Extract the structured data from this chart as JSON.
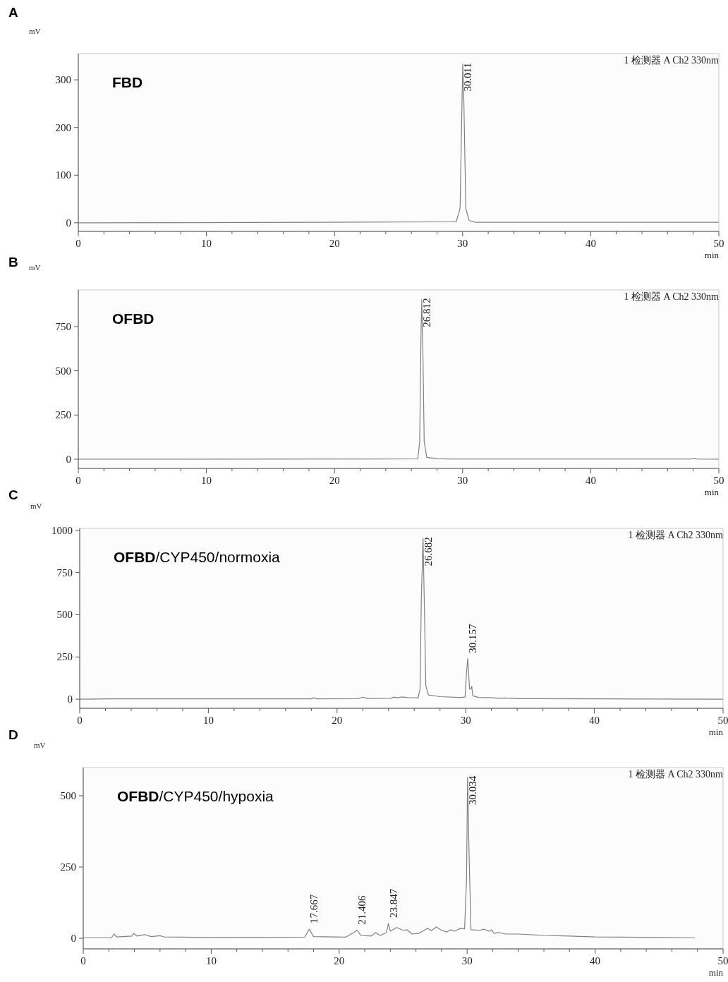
{
  "chart_data": [
    {
      "type": "line",
      "title": "FBD",
      "xlabel": "min",
      "ylabel": "mV",
      "xlim": [
        0,
        50
      ],
      "ylim": [
        -18,
        355
      ],
      "xticks": [
        0,
        {
          "value": 2,
          "label": null
        },
        {
          "value": 4,
          "label": null
        },
        {
          "value": 6,
          "label": null
        },
        {
          "value": 8,
          "label": null
        },
        10,
        {
          "value": 12,
          "label": null
        },
        {
          "value": 14,
          "label": null
        },
        {
          "value": 16,
          "label": null
        },
        {
          "value": 18,
          "label": null
        },
        20,
        {
          "value": 22,
          "label": null
        },
        {
          "value": 24,
          "label": null
        },
        {
          "value": 26,
          "label": null
        },
        {
          "value": 28,
          "label": null
        },
        30,
        {
          "value": 32,
          "label": null
        },
        {
          "value": 34,
          "label": null
        },
        {
          "value": 36,
          "label": null
        },
        {
          "value": 38,
          "label": null
        },
        40,
        {
          "value": 42,
          "label": null
        },
        {
          "value": 44,
          "label": null
        },
        {
          "value": 46,
          "label": null
        },
        {
          "value": 48,
          "label": null
        },
        50
      ],
      "yticks": [
        0,
        100,
        200,
        300
      ],
      "grid": false,
      "series": [
        {
          "color": "#808080",
          "x": [
            0,
            19,
            28,
            29.5,
            29.8,
            29.95,
            30.011,
            30.1,
            30.25,
            30.5,
            31,
            36,
            46,
            50
          ],
          "values": [
            0,
            1,
            2,
            2,
            30,
            250,
            333,
            250,
            30,
            5,
            1,
            1,
            1,
            1
          ]
        }
      ],
      "annotations": [
        "A",
        "1 检测器 A Ch2 330nm",
        {
          "text": "30.011",
          "x": 30.011,
          "y": 333
        }
      ]
    },
    {
      "type": "line",
      "title": "OFBD",
      "xlabel": "min",
      "ylabel": "mV",
      "xlim": [
        0,
        50
      ],
      "ylim": [
        -52,
        957
      ],
      "xticks": [
        0,
        {
          "value": 2,
          "label": null
        },
        {
          "value": 4,
          "label": null
        },
        {
          "value": 6,
          "label": null
        },
        {
          "value": 8,
          "label": null
        },
        10,
        {
          "value": 12,
          "label": null
        },
        {
          "value": 14,
          "label": null
        },
        {
          "value": 16,
          "label": null
        },
        {
          "value": 18,
          "label": null
        },
        20,
        {
          "value": 22,
          "label": null
        },
        {
          "value": 24,
          "label": null
        },
        {
          "value": 26,
          "label": null
        },
        {
          "value": 28,
          "label": null
        },
        30,
        {
          "value": 32,
          "label": null
        },
        {
          "value": 34,
          "label": null
        },
        {
          "value": 36,
          "label": null
        },
        {
          "value": 38,
          "label": null
        },
        40,
        {
          "value": 42,
          "label": null
        },
        {
          "value": 44,
          "label": null
        },
        {
          "value": 46,
          "label": null
        },
        {
          "value": 48,
          "label": null
        },
        50
      ],
      "yticks": [
        0,
        250,
        500,
        750
      ],
      "grid": false,
      "series": [
        {
          "color": "#808080",
          "x": [
            0,
            26.5,
            26.65,
            26.75,
            26.812,
            26.9,
            27.0,
            27.2,
            28,
            29,
            47.8,
            48,
            48.3,
            50
          ],
          "values": [
            0,
            2,
            100,
            700,
            903,
            600,
            100,
            10,
            3,
            1,
            1,
            5,
            1,
            0
          ]
        }
      ],
      "annotations": [
        "B",
        "1 检测器 A Ch2 330nm",
        {
          "text": "26.812",
          "x": 26.812,
          "y": 903
        }
      ]
    },
    {
      "type": "line",
      "title": "OFBD/CYP450/normoxia",
      "xlabel": "min",
      "ylabel": "mV",
      "xlim": [
        0,
        50
      ],
      "ylim": [
        -54,
        1012
      ],
      "xticks": [
        0,
        {
          "value": 2,
          "label": null
        },
        {
          "value": 4,
          "label": null
        },
        {
          "value": 6,
          "label": null
        },
        {
          "value": 8,
          "label": null
        },
        10,
        {
          "value": 12,
          "label": null
        },
        {
          "value": 14,
          "label": null
        },
        {
          "value": 16,
          "label": null
        },
        {
          "value": 18,
          "label": null
        },
        20,
        {
          "value": 22,
          "label": null
        },
        {
          "value": 24,
          "label": null
        },
        {
          "value": 26,
          "label": null
        },
        {
          "value": 28,
          "label": null
        },
        30,
        {
          "value": 32,
          "label": null
        },
        {
          "value": 34,
          "label": null
        },
        {
          "value": 36,
          "label": null
        },
        {
          "value": 38,
          "label": null
        },
        40,
        {
          "value": 42,
          "label": null
        },
        {
          "value": 44,
          "label": null
        },
        {
          "value": 46,
          "label": null
        },
        {
          "value": 48,
          "label": null
        },
        50
      ],
      "yticks": [
        0,
        250,
        500,
        750,
        1000
      ],
      "grid": false,
      "series": [
        {
          "color": "#808080",
          "x": [
            0,
            2.5,
            18,
            18.2,
            18.4,
            21.6,
            22,
            22.4,
            24.2,
            24.4,
            24.7,
            25,
            25.5,
            26.3,
            26.45,
            26.55,
            26.682,
            26.8,
            26.9,
            27.1,
            28,
            29.5,
            29.95,
            30.05,
            30.157,
            30.3,
            30.4,
            30.47,
            30.55,
            31,
            32.2,
            32.5,
            33,
            34,
            40,
            50
          ],
          "values": [
            0,
            2,
            2,
            8,
            2,
            3,
            12,
            4,
            5,
            12,
            8,
            13,
            9,
            8,
            60,
            600,
            952,
            500,
            80,
            25,
            15,
            10,
            12,
            150,
            240,
            60,
            60,
            75,
            20,
            10,
            8,
            5,
            7,
            3,
            2,
            0
          ]
        }
      ],
      "annotations": [
        "C",
        "1 检测器 A Ch2 330nm",
        {
          "text": "26.682",
          "x": 26.682,
          "y": 952
        },
        {
          "text": "30.157",
          "x": 30.157,
          "y": 240
        }
      ]
    },
    {
      "type": "line",
      "title": "OFBD/CYP450/hypoxia",
      "xlabel": "min",
      "ylabel": "mV",
      "xlim": [
        0,
        50
      ],
      "ylim": [
        -37,
        599
      ],
      "xticks": [
        0,
        {
          "value": 2,
          "label": null
        },
        {
          "value": 4,
          "label": null
        },
        {
          "value": 6,
          "label": null
        },
        {
          "value": 8,
          "label": null
        },
        10,
        {
          "value": 12,
          "label": null
        },
        {
          "value": 14,
          "label": null
        },
        {
          "value": 16,
          "label": null
        },
        {
          "value": 18,
          "label": null
        },
        20,
        {
          "value": 22,
          "label": null
        },
        {
          "value": 24,
          "label": null
        },
        {
          "value": 26,
          "label": null
        },
        {
          "value": 28,
          "label": null
        },
        30,
        {
          "value": 32,
          "label": null
        },
        {
          "value": 34,
          "label": null
        },
        {
          "value": 36,
          "label": null
        },
        {
          "value": 38,
          "label": null
        },
        40,
        {
          "value": 42,
          "label": null
        },
        {
          "value": 44,
          "label": null
        },
        {
          "value": 46,
          "label": null
        },
        {
          "value": 48,
          "label": null
        },
        50
      ],
      "yticks": [
        0,
        250,
        500
      ],
      "grid": false,
      "series": [
        {
          "color": "#808080",
          "x": [
            0,
            2.2,
            2.4,
            2.6,
            3.8,
            3.95,
            4.2,
            4.8,
            5.3,
            6,
            6.3,
            10,
            17.3,
            17.667,
            18,
            20.5,
            21,
            21.406,
            21.7,
            22.5,
            22.85,
            23.2,
            23.7,
            23.847,
            24,
            24.5,
            25,
            25.3,
            25.7,
            26.2,
            26.9,
            27.2,
            27.6,
            28,
            28.4,
            28.7,
            29,
            29.5,
            29.8,
            29.95,
            30.034,
            30.15,
            30.3,
            31,
            31.3,
            31.7,
            31.9,
            32.1,
            32.5,
            33,
            34,
            36,
            38,
            40,
            42,
            45,
            47.8
          ],
          "values": [
            2,
            2,
            15,
            5,
            8,
            17,
            8,
            13,
            6,
            9,
            5,
            3,
            4,
            32,
            6,
            4,
            17,
            28,
            10,
            8,
            20,
            10,
            20,
            52,
            25,
            38,
            28,
            30,
            15,
            17,
            35,
            27,
            40,
            28,
            22,
            30,
            25,
            35,
            33,
            200,
            565,
            300,
            30,
            28,
            32,
            25,
            30,
            18,
            20,
            15,
            15,
            10,
            8,
            5,
            4,
            3,
            2
          ]
        }
      ],
      "annotations": [
        "D",
        "1 检测器 A Ch2 330nm",
        {
          "text": "17.667",
          "x": 17.667,
          "y": 32
        },
        {
          "text": "21.406",
          "x": 21.406,
          "y": 28
        },
        {
          "text": "23.847",
          "x": 23.847,
          "y": 52
        },
        {
          "text": "30.034",
          "x": 30.034,
          "y": 565
        }
      ]
    }
  ]
}
